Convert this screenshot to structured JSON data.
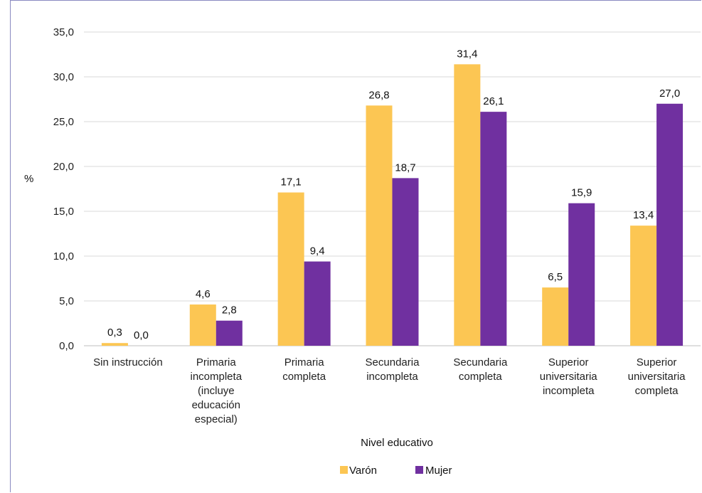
{
  "chart_data": {
    "type": "bar",
    "categories": [
      [
        "Sin instrucción"
      ],
      [
        "Primaria",
        "incompleta",
        "(incluye",
        "educación",
        "especial)"
      ],
      [
        "Primaria",
        "completa"
      ],
      [
        "Secundaria",
        "incompleta"
      ],
      [
        "Secundaria",
        "completa"
      ],
      [
        "Superior",
        "universitaria",
        "incompleta"
      ],
      [
        "Superior",
        "universitaria",
        "completa"
      ]
    ],
    "series": [
      {
        "name": "Varón",
        "color": "#FCC653",
        "values": [
          0.3,
          4.6,
          17.1,
          26.8,
          31.4,
          6.5,
          13.4
        ],
        "labels": [
          "0,3",
          "4,6",
          "17,1",
          "26,8",
          "31,4",
          "6,5",
          "13,4"
        ]
      },
      {
        "name": "Mujer",
        "color": "#7030A0",
        "values": [
          0.0,
          2.8,
          9.4,
          18.7,
          26.1,
          15.9,
          27.0
        ],
        "labels": [
          "0,0",
          "2,8",
          "9,4",
          "18,7",
          "26,1",
          "15,9",
          "27,0"
        ]
      }
    ],
    "yticks": [
      "0,0",
      "5,0",
      "10,0",
      "15,0",
      "20,0",
      "25,0",
      "30,0",
      "35,0"
    ],
    "ylim": [
      0,
      35
    ],
    "xlabel": "Nivel educativo",
    "ylabel": "%",
    "grid": true,
    "legend_position": "bottom"
  }
}
